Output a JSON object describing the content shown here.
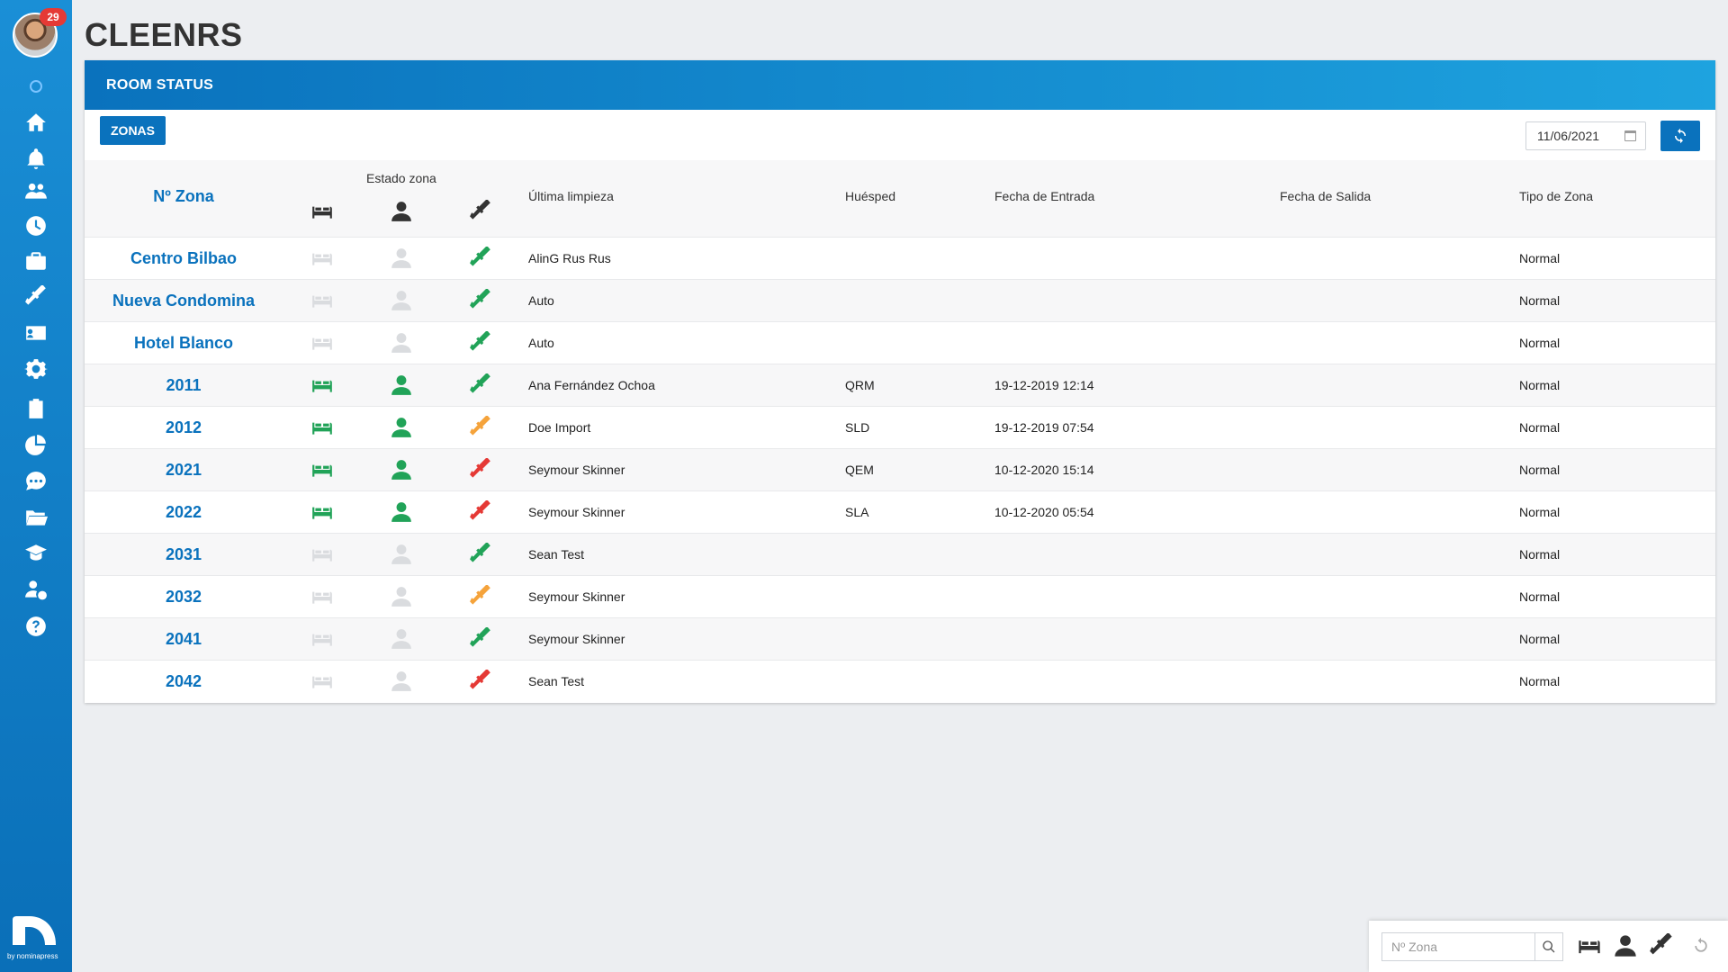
{
  "app": {
    "title": "CLEENRS"
  },
  "sidebar": {
    "badge": "29",
    "brand_sub": "by nominapress",
    "items": [
      {
        "icon": "home-icon"
      },
      {
        "icon": "bell-icon"
      },
      {
        "icon": "users-icon"
      },
      {
        "icon": "clock-icon"
      },
      {
        "icon": "briefcase-icon"
      },
      {
        "icon": "broom-icon"
      },
      {
        "icon": "id-card-icon"
      },
      {
        "icon": "gear-icon"
      },
      {
        "icon": "clipboard-icon"
      },
      {
        "icon": "pie-chart-icon"
      },
      {
        "icon": "chat-icon"
      },
      {
        "icon": "folder-icon"
      },
      {
        "icon": "graduation-cap-icon"
      },
      {
        "icon": "user-money-icon"
      },
      {
        "icon": "help-icon"
      }
    ]
  },
  "panel": {
    "title": "ROOM STATUS",
    "zonas_label": "ZONAS",
    "date": "11/06/2021"
  },
  "table": {
    "headers": {
      "zona": "Nº Zona",
      "estado": "Estado zona",
      "limpieza": "Última limpieza",
      "huesped": "Huésped",
      "entrada": "Fecha de Entrada",
      "salida": "Fecha de Salida",
      "tipo": "Tipo de Zona"
    },
    "rows": [
      {
        "zona": "Centro Bilbao",
        "bed": "grey",
        "guest": "grey",
        "clean": "green",
        "limpieza": "AlinG Rus Rus",
        "huesped": "",
        "entrada": "",
        "salida": "",
        "tipo": "Normal"
      },
      {
        "zona": "Nueva Condomina",
        "bed": "grey",
        "guest": "grey",
        "clean": "green",
        "limpieza": "Auto",
        "huesped": "",
        "entrada": "",
        "salida": "",
        "tipo": "Normal"
      },
      {
        "zona": "Hotel Blanco",
        "bed": "grey",
        "guest": "grey",
        "clean": "green",
        "limpieza": "Auto",
        "huesped": "",
        "entrada": "",
        "salida": "",
        "tipo": "Normal"
      },
      {
        "zona": "2011",
        "bed": "green",
        "guest": "green",
        "clean": "green",
        "limpieza": "Ana Fernández Ochoa",
        "huesped": "QRM",
        "entrada": "19-12-2019 12:14",
        "salida": "",
        "tipo": "Normal"
      },
      {
        "zona": "2012",
        "bed": "green",
        "guest": "green",
        "clean": "orange",
        "limpieza": "Doe Import",
        "huesped": "SLD",
        "entrada": "19-12-2019 07:54",
        "salida": "",
        "tipo": "Normal"
      },
      {
        "zona": "2021",
        "bed": "green",
        "guest": "green",
        "clean": "red",
        "limpieza": "Seymour Skinner",
        "huesped": "QEM",
        "entrada": "10-12-2020 15:14",
        "salida": "",
        "tipo": "Normal"
      },
      {
        "zona": "2022",
        "bed": "green",
        "guest": "green",
        "clean": "red",
        "limpieza": "Seymour Skinner",
        "huesped": "SLA",
        "entrada": "10-12-2020 05:54",
        "salida": "",
        "tipo": "Normal"
      },
      {
        "zona": "2031",
        "bed": "grey",
        "guest": "grey",
        "clean": "green",
        "limpieza": "Sean Test",
        "huesped": "",
        "entrada": "",
        "salida": "",
        "tipo": "Normal"
      },
      {
        "zona": "2032",
        "bed": "grey",
        "guest": "grey",
        "clean": "orange",
        "limpieza": "Seymour Skinner",
        "huesped": "",
        "entrada": "",
        "salida": "",
        "tipo": "Normal"
      },
      {
        "zona": "2041",
        "bed": "grey",
        "guest": "grey",
        "clean": "green",
        "limpieza": "Seymour Skinner",
        "huesped": "",
        "entrada": "",
        "salida": "",
        "tipo": "Normal"
      },
      {
        "zona": "2042",
        "bed": "grey",
        "guest": "grey",
        "clean": "red",
        "limpieza": "Sean Test",
        "huesped": "",
        "entrada": "",
        "salida": "",
        "tipo": "Normal"
      }
    ]
  },
  "filter": {
    "placeholder": "Nº Zona"
  },
  "colors": {
    "accent": "#0a72bd",
    "green": "#21a358",
    "orange": "#f5a33b",
    "red": "#e53935",
    "grey": "#dadcdf"
  }
}
